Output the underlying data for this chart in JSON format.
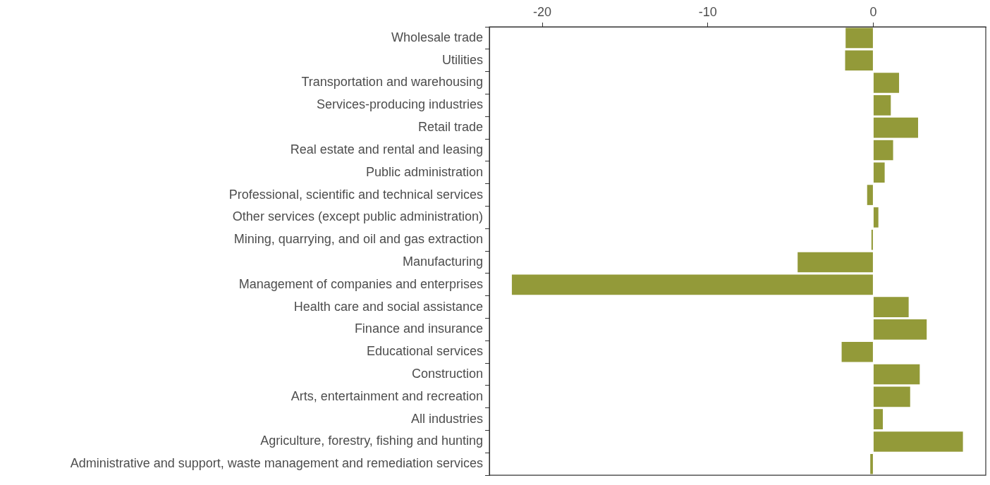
{
  "chart_data": {
    "type": "bar",
    "orientation": "horizontal",
    "categories": [
      "Wholesale trade",
      "Utilities",
      "Transportation and warehousing",
      "Services-producing industries",
      "Retail trade",
      "Real estate and rental and leasing",
      "Public administration",
      "Professional, scientific and technical services",
      "Other services (except public administration)",
      "Mining, quarrying, and oil and gas extraction",
      "Manufacturing",
      "Management of companies and enterprises",
      "Health care and social assistance",
      "Finance and insurance",
      "Educational services",
      "Construction",
      "Arts, entertainment and recreation",
      "All industries",
      "Agriculture, forestry, fishing and hunting",
      "Administrative and support, waste management and remediation services"
    ],
    "values": [
      -1.67,
      -1.7,
      1.56,
      1.06,
      2.71,
      1.2,
      0.69,
      -0.37,
      0.31,
      -0.11,
      -4.57,
      -21.84,
      2.14,
      3.23,
      -1.91,
      2.81,
      2.23,
      0.58,
      5.42,
      -0.18
    ],
    "color": "#939a39",
    "xlim": [
      -23.2,
      6.8
    ],
    "xticks": [
      -20,
      -10,
      0
    ],
    "grid": false,
    "legend": false
  }
}
